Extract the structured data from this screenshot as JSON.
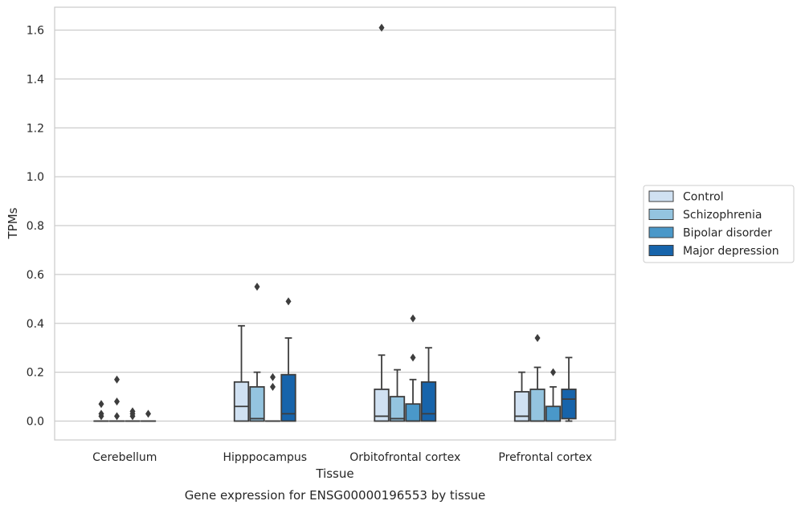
{
  "chart_data": {
    "type": "boxplot",
    "title": "",
    "caption": "Gene expression for ENSG00000196553 by tissue",
    "xlabel": "Tissue",
    "ylabel": "TPMs",
    "ylim": [
      -0.08,
      1.69
    ],
    "yticks": [
      "0.0",
      "0.2",
      "0.4",
      "0.6",
      "0.8",
      "1.0",
      "1.2",
      "1.4",
      "1.6"
    ],
    "ytick_values": [
      0,
      0.2,
      0.4,
      0.6,
      0.8,
      1.0,
      1.2,
      1.4,
      1.6
    ],
    "grid": "horizontal",
    "legend_position": "right",
    "categories": [
      "Cerebellum",
      "Hipppocampus",
      "Orbitofrontal cortex",
      "Prefrontal cortex"
    ],
    "series": [
      {
        "name": "Control",
        "color": "#d0e1f2",
        "boxes": [
          {
            "whislo": 0,
            "q1": 0,
            "med": 0,
            "q3": 0,
            "whishi": 0,
            "fliers": [
              0.07,
              0.03,
              0.02
            ]
          },
          {
            "whislo": 0,
            "q1": 0,
            "med": 0.06,
            "q3": 0.16,
            "whishi": 0.39,
            "fliers": []
          },
          {
            "whislo": 0,
            "q1": 0,
            "med": 0.02,
            "q3": 0.13,
            "whishi": 0.27,
            "fliers": [
              1.61
            ]
          },
          {
            "whislo": 0,
            "q1": 0,
            "med": 0.02,
            "q3": 0.12,
            "whishi": 0.2,
            "fliers": []
          }
        ]
      },
      {
        "name": "Schizophrenia",
        "color": "#94c4df",
        "boxes": [
          {
            "whislo": 0,
            "q1": 0,
            "med": 0,
            "q3": 0,
            "whishi": 0,
            "fliers": [
              0.17,
              0.08,
              0.02
            ]
          },
          {
            "whislo": 0,
            "q1": 0,
            "med": 0.01,
            "q3": 0.14,
            "whishi": 0.2,
            "fliers": [
              0.55
            ]
          },
          {
            "whislo": 0,
            "q1": 0,
            "med": 0.01,
            "q3": 0.1,
            "whishi": 0.21,
            "fliers": []
          },
          {
            "whislo": 0,
            "q1": 0,
            "med": 0,
            "q3": 0.13,
            "whishi": 0.22,
            "fliers": [
              0.34
            ]
          }
        ]
      },
      {
        "name": "Bipolar disorder",
        "color": "#4a98c9",
        "boxes": [
          {
            "whislo": 0,
            "q1": 0,
            "med": 0,
            "q3": 0,
            "whishi": 0,
            "fliers": [
              0.04,
              0.03,
              0.02
            ]
          },
          {
            "whislo": 0,
            "q1": 0,
            "med": 0,
            "q3": 0,
            "whishi": 0,
            "fliers": [
              0.18,
              0.14
            ]
          },
          {
            "whislo": 0,
            "q1": 0,
            "med": 0,
            "q3": 0.07,
            "whishi": 0.17,
            "fliers": [
              0.26,
              0.42
            ]
          },
          {
            "whislo": 0,
            "q1": 0,
            "med": 0,
            "q3": 0.06,
            "whishi": 0.14,
            "fliers": [
              0.2
            ]
          }
        ]
      },
      {
        "name": "Major depression",
        "color": "#1764ab",
        "boxes": [
          {
            "whislo": 0,
            "q1": 0,
            "med": 0,
            "q3": 0,
            "whishi": 0,
            "fliers": [
              0.03
            ]
          },
          {
            "whislo": 0,
            "q1": 0,
            "med": 0.03,
            "q3": 0.19,
            "whishi": 0.34,
            "fliers": [
              0.49
            ]
          },
          {
            "whislo": 0,
            "q1": 0,
            "med": 0.03,
            "q3": 0.16,
            "whishi": 0.3,
            "fliers": []
          },
          {
            "whislo": 0,
            "q1": 0.01,
            "med": 0.09,
            "q3": 0.13,
            "whishi": 0.26,
            "fliers": []
          }
        ]
      }
    ]
  }
}
